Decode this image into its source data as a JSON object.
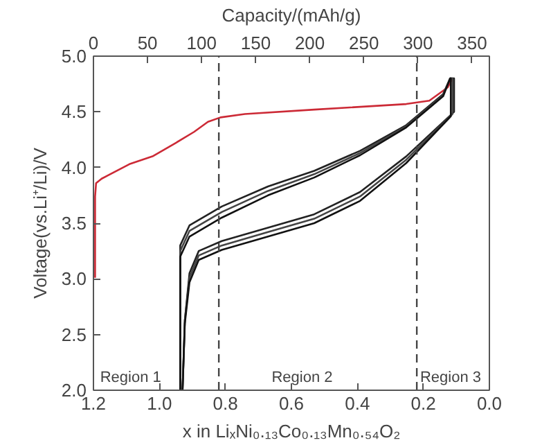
{
  "chart_data": {
    "type": "line",
    "xlabel": "x in LiₓNi₀.₁₃Co₀.₁₃Mn₀.₅₄O₂",
    "ylabel": "Voltage(vs.Li⁺/Li)/V",
    "x2label": "Capacity/(mAh/g)",
    "xlim": [
      1.2,
      0.0
    ],
    "xticks": [
      {
        "value": 1.2,
        "label": "1.2"
      },
      {
        "value": 1.0,
        "label": "1.0"
      },
      {
        "value": 0.8,
        "label": "0.8"
      },
      {
        "value": 0.6,
        "label": "0.6"
      },
      {
        "value": 0.4,
        "label": "0.4"
      },
      {
        "value": 0.2,
        "label": "0.2"
      },
      {
        "value": 0.0,
        "label": "0.0"
      }
    ],
    "x2lim": [
      0,
      366
    ],
    "x2ticks": [
      0,
      50,
      100,
      150,
      200,
      250,
      300,
      350
    ],
    "ylim": [
      2.0,
      5.0
    ],
    "yticks": [
      {
        "value": 2.0,
        "label": "2.0"
      },
      {
        "value": 2.5,
        "label": "2.5"
      },
      {
        "value": 3.0,
        "label": "3.0"
      },
      {
        "value": 3.5,
        "label": "3.5"
      },
      {
        "value": 4.0,
        "label": "4.0"
      },
      {
        "value": 4.5,
        "label": "4.5"
      },
      {
        "value": 5.0,
        "label": "5.0"
      }
    ],
    "grid": false,
    "line_style": "solid",
    "series": [
      {
        "color": "#cc2a36",
        "x": [
          1.195,
          1.195,
          1.192,
          1.175,
          1.091,
          1.021,
          0.951,
          0.895,
          0.853,
          0.815,
          0.741,
          0.531,
          0.252,
          0.182,
          0.126,
          0.112
        ],
        "values": [
          3.01,
          3.74,
          3.86,
          3.9,
          4.03,
          4.1,
          4.22,
          4.32,
          4.41,
          4.45,
          4.48,
          4.52,
          4.57,
          4.6,
          4.72,
          4.8
        ]
      },
      {
        "color": "#222222",
        "x": [
          0.937,
          0.937,
          0.909,
          0.811,
          0.671,
          0.531,
          0.392,
          0.252,
          0.14,
          0.119,
          0.107,
          0.107,
          0.252,
          0.392,
          0.531,
          0.671,
          0.811,
          0.881,
          0.909,
          0.923,
          0.93
        ],
        "values": [
          2.0,
          3.3,
          3.48,
          3.65,
          3.83,
          3.97,
          4.15,
          4.38,
          4.66,
          4.8,
          4.8,
          4.5,
          4.1,
          3.78,
          3.58,
          3.46,
          3.34,
          3.25,
          3.05,
          2.63,
          2.0
        ]
      },
      {
        "color": "#444444",
        "x": [
          0.937,
          0.937,
          0.909,
          0.811,
          0.671,
          0.531,
          0.392,
          0.252,
          0.14,
          0.119,
          0.112,
          0.112,
          0.252,
          0.392,
          0.531,
          0.671,
          0.811,
          0.881,
          0.909,
          0.923,
          0.93
        ],
        "values": [
          2.0,
          3.25,
          3.43,
          3.6,
          3.79,
          3.94,
          4.13,
          4.37,
          4.65,
          4.8,
          4.8,
          4.48,
          4.07,
          3.74,
          3.54,
          3.42,
          3.3,
          3.21,
          3.01,
          2.63,
          2.0
        ]
      },
      {
        "color": "#111111",
        "x": [
          0.937,
          0.937,
          0.909,
          0.811,
          0.671,
          0.531,
          0.392,
          0.252,
          0.14,
          0.119,
          0.117,
          0.117,
          0.252,
          0.392,
          0.531,
          0.671,
          0.811,
          0.881,
          0.909,
          0.923,
          0.93
        ],
        "values": [
          2.0,
          3.2,
          3.38,
          3.55,
          3.75,
          3.91,
          4.11,
          4.36,
          4.64,
          4.8,
          4.8,
          4.46,
          4.04,
          3.7,
          3.5,
          3.38,
          3.26,
          3.17,
          2.97,
          2.6,
          2.0
        ]
      }
    ],
    "ref_lines": [
      {
        "axis": "x",
        "value": 0.82,
        "color": "#444444",
        "line_style": "dashed"
      },
      {
        "axis": "x",
        "value": 0.22,
        "color": "#444444",
        "line_style": "dashed"
      }
    ],
    "annotations": [
      "Region 1",
      "Region 2",
      "Region 3"
    ]
  }
}
